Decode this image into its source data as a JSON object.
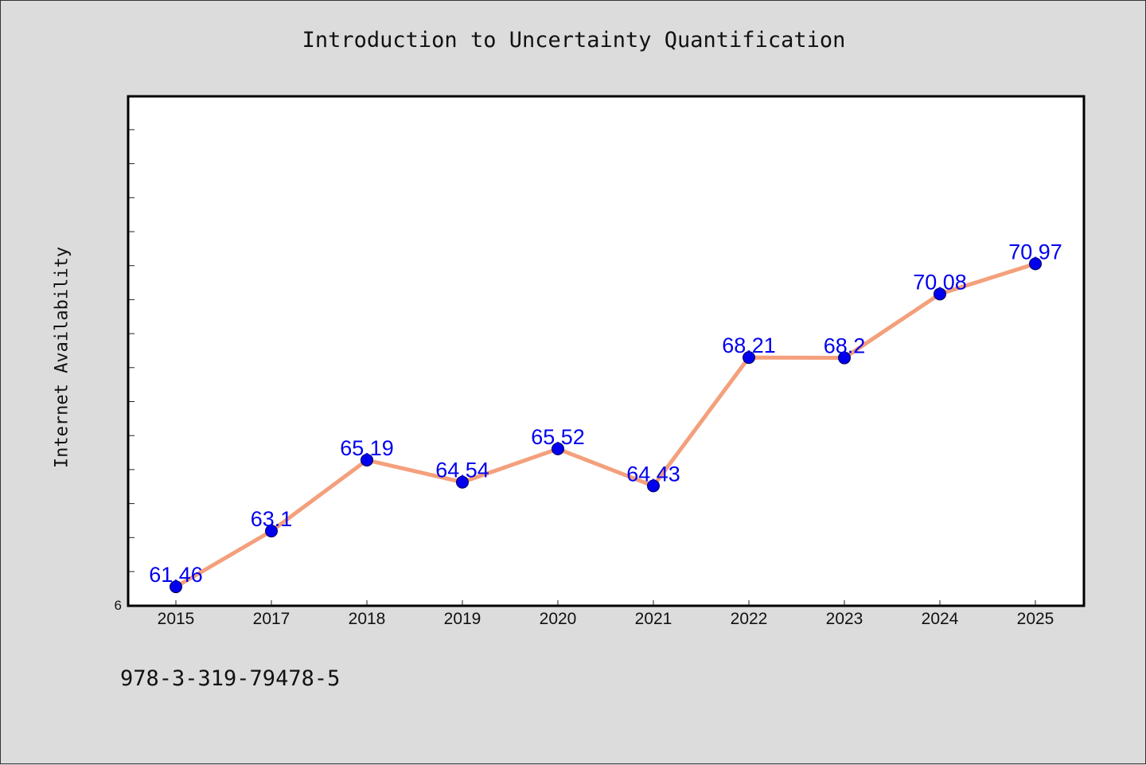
{
  "footer": {
    "isbn": "978-3-319-79478-5"
  },
  "chart_data": {
    "type": "line",
    "title": "Introduction to Uncertainty Quantification",
    "xlabel": "",
    "ylabel": "Internet Availability",
    "categories": [
      "2015",
      "2017",
      "2018",
      "2019",
      "2020",
      "2021",
      "2022",
      "2023",
      "2024",
      "2025"
    ],
    "values": [
      61.46,
      63.1,
      65.19,
      64.54,
      65.52,
      64.43,
      68.21,
      68.2,
      70.08,
      70.97
    ],
    "data_labels": [
      "61.46",
      "63.1",
      "65.19",
      "64.54",
      "65.52",
      "64.43",
      "68.21",
      "68.2",
      "70.08",
      "70.97"
    ],
    "y_tick_labels": [
      "6"
    ],
    "ylim": [
      60.9,
      75.9
    ],
    "grid": false,
    "line_color": "#f4a07c",
    "marker_color": "#0000ee",
    "label_color": "#0000ee"
  }
}
